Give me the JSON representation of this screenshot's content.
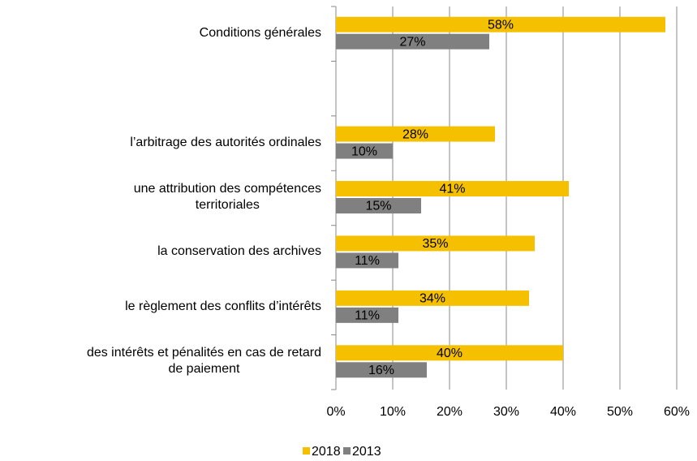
{
  "chart_data": {
    "type": "bar",
    "orientation": "horizontal",
    "categories": [
      "Conditions générales",
      null,
      "l’arbitrage des autorités ordinales",
      "une attribution des compétences\nterritoriales",
      "la conservation des archives",
      "le règlement des conflits d’intérêts",
      "des intérêts et pénalités en cas de retard\nde paiement"
    ],
    "series": [
      {
        "name": "2018",
        "color": "#f5c000",
        "values": [
          58,
          null,
          28,
          41,
          35,
          34,
          40
        ],
        "value_labels": [
          "58%",
          null,
          "28%",
          "41%",
          "35%",
          "34%",
          "40%"
        ]
      },
      {
        "name": "2013",
        "color": "#808080",
        "values": [
          27,
          null,
          10,
          15,
          11,
          11,
          16
        ],
        "value_labels": [
          "27%",
          null,
          "10%",
          "15%",
          "11%",
          "11%",
          "16%"
        ]
      }
    ],
    "xlim": [
      0,
      60
    ],
    "xticks": [
      {
        "value": 0,
        "label": "0%"
      },
      {
        "value": 10,
        "label": "10%"
      },
      {
        "value": 20,
        "label": "20%"
      },
      {
        "value": 30,
        "label": "30%"
      },
      {
        "value": 40,
        "label": "40%"
      },
      {
        "value": 50,
        "label": "50%"
      },
      {
        "value": 60,
        "label": "60%"
      }
    ],
    "grid": true,
    "legend": "bottom"
  }
}
